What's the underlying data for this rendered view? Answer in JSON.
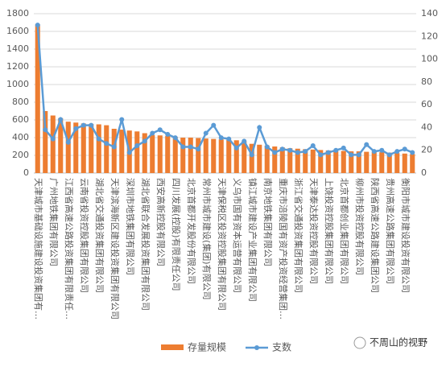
{
  "chart_data": {
    "type": "bar_line",
    "categories": [
      "天津城市基础设施建设投资集团有…",
      null,
      "广州地铁集团有限公司",
      null,
      "江西省高速公路投资集团有限责任…",
      null,
      "云南省投资控股集团有限公司",
      null,
      "湖北省交通投资集团有限公司",
      null,
      "天津滨海新区建设投资集团有限公司",
      null,
      "深圳市地铁集团有限公司",
      null,
      "湖北省联合发展投资集团有限公司",
      null,
      "西安高新控股有限公司",
      null,
      "四川发展(控股)有限责任公司",
      null,
      "北京首都开发股份有限公司",
      null,
      "常州市城市建设(集团)有限公司",
      null,
      "天津保税区投资控股集团有限公司",
      null,
      "义乌市国有资本运营有限公司",
      null,
      "镇江城市建设产业集团有限公司",
      null,
      "南京地铁集团有限公司",
      null,
      "重庆市涪陵国有资产投资经营集团…",
      null,
      "浙江省交通投资集团有限公司",
      null,
      "天津泰达投资控股有限公司",
      null,
      "上饶投资控股集团有限公司",
      null,
      "北京首都创业集团有限公司",
      null,
      "柳州市投资控股有限公司",
      null,
      "陕西省高速公路建设集团公司",
      null,
      "贵州高速公路集团有限公司",
      null,
      "衡阳市城市建设投资有限公司",
      null
    ],
    "series": [
      {
        "name": "存量规模",
        "color": "#ed7d31",
        "axis": "y",
        "values": [
          1680,
          700,
          650,
          620,
          580,
          570,
          560,
          555,
          550,
          540,
          500,
          490,
          480,
          470,
          450,
          430,
          425,
          420,
          410,
          400,
          400,
          395,
          390,
          385,
          380,
          375,
          370,
          360,
          330,
          320,
          310,
          300,
          290,
          280,
          275,
          270,
          265,
          260,
          255,
          250,
          250,
          245,
          245,
          240,
          240,
          235,
          230,
          225,
          220,
          215
        ]
      },
      {
        "name": "支数",
        "color": "#5b9bd5",
        "axis": "y2",
        "values": [
          130,
          38,
          30,
          47,
          27,
          39,
          42,
          42,
          30,
          26,
          23,
          47,
          18,
          24,
          28,
          35,
          38,
          34,
          31,
          23,
          23,
          21,
          35,
          42,
          31,
          30,
          22,
          28,
          16,
          40,
          23,
          18,
          21,
          20,
          18,
          19,
          24,
          16,
          18,
          20,
          22,
          16,
          16,
          25,
          19,
          20,
          16,
          19,
          21,
          18
        ]
      }
    ],
    "ylim": [
      0,
      1800
    ],
    "yticks": [
      0,
      200,
      400,
      600,
      800,
      1000,
      1200,
      1400,
      1600,
      1800
    ],
    "y2lim": [
      0,
      140
    ],
    "y2ticks": [
      0,
      20,
      40,
      60,
      80,
      100,
      120,
      140
    ],
    "grid": true,
    "legend": "bottom",
    "watermark": "不周山的视野"
  }
}
